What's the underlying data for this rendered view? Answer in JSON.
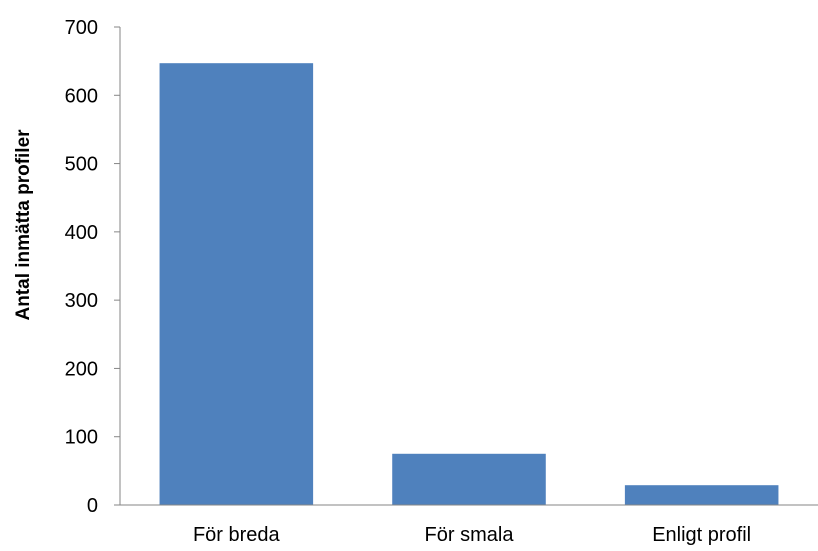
{
  "chart_data": {
    "type": "bar",
    "title": "",
    "xlabel": "",
    "ylabel": "Antal inmätta profiler",
    "categories": [
      "För breda",
      "För smala",
      "Enligt profil"
    ],
    "values": [
      647,
      75,
      29
    ],
    "ylim": [
      0,
      700
    ],
    "yticks": [
      0,
      100,
      200,
      300,
      400,
      500,
      600,
      700
    ],
    "bar_color": "#4F81BD",
    "grid": false,
    "legend": "none"
  }
}
